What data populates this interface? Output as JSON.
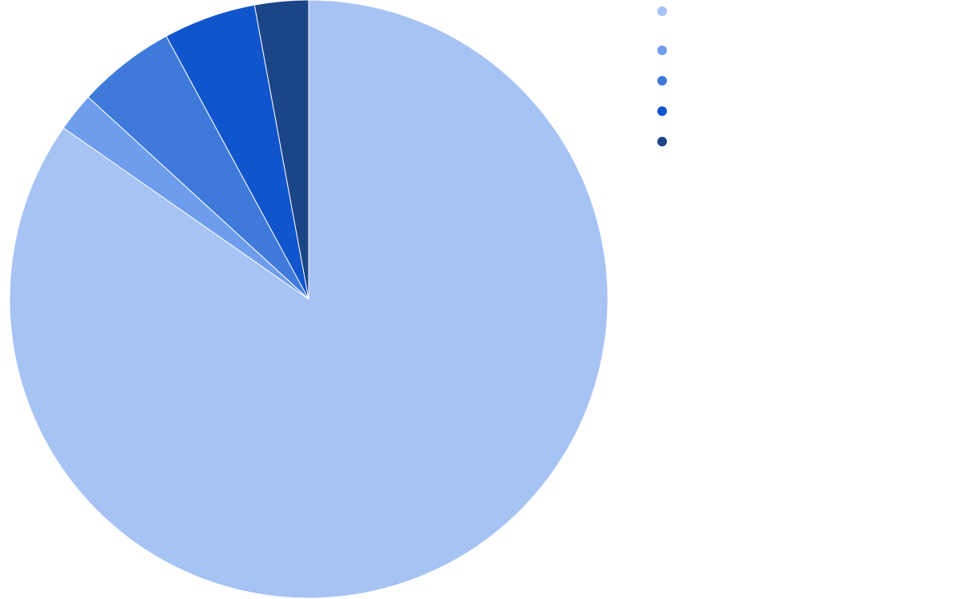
{
  "chart_data": {
    "type": "pie",
    "title": "",
    "slices": [
      {
        "label": "",
        "value": 84.7,
        "color": "#a6c3f4"
      },
      {
        "label": "",
        "value": 2.1,
        "color": "#6f9ded"
      },
      {
        "label": "",
        "value": 5.3,
        "color": "#3f7adb"
      },
      {
        "label": "",
        "value": 5.0,
        "color": "#1155cc"
      },
      {
        "label": "",
        "value": 2.9,
        "color": "#1c4587"
      }
    ],
    "start_angle": "12 o'clock",
    "direction": "clockwise",
    "legend": "top-right",
    "legend_marker": "circle"
  }
}
